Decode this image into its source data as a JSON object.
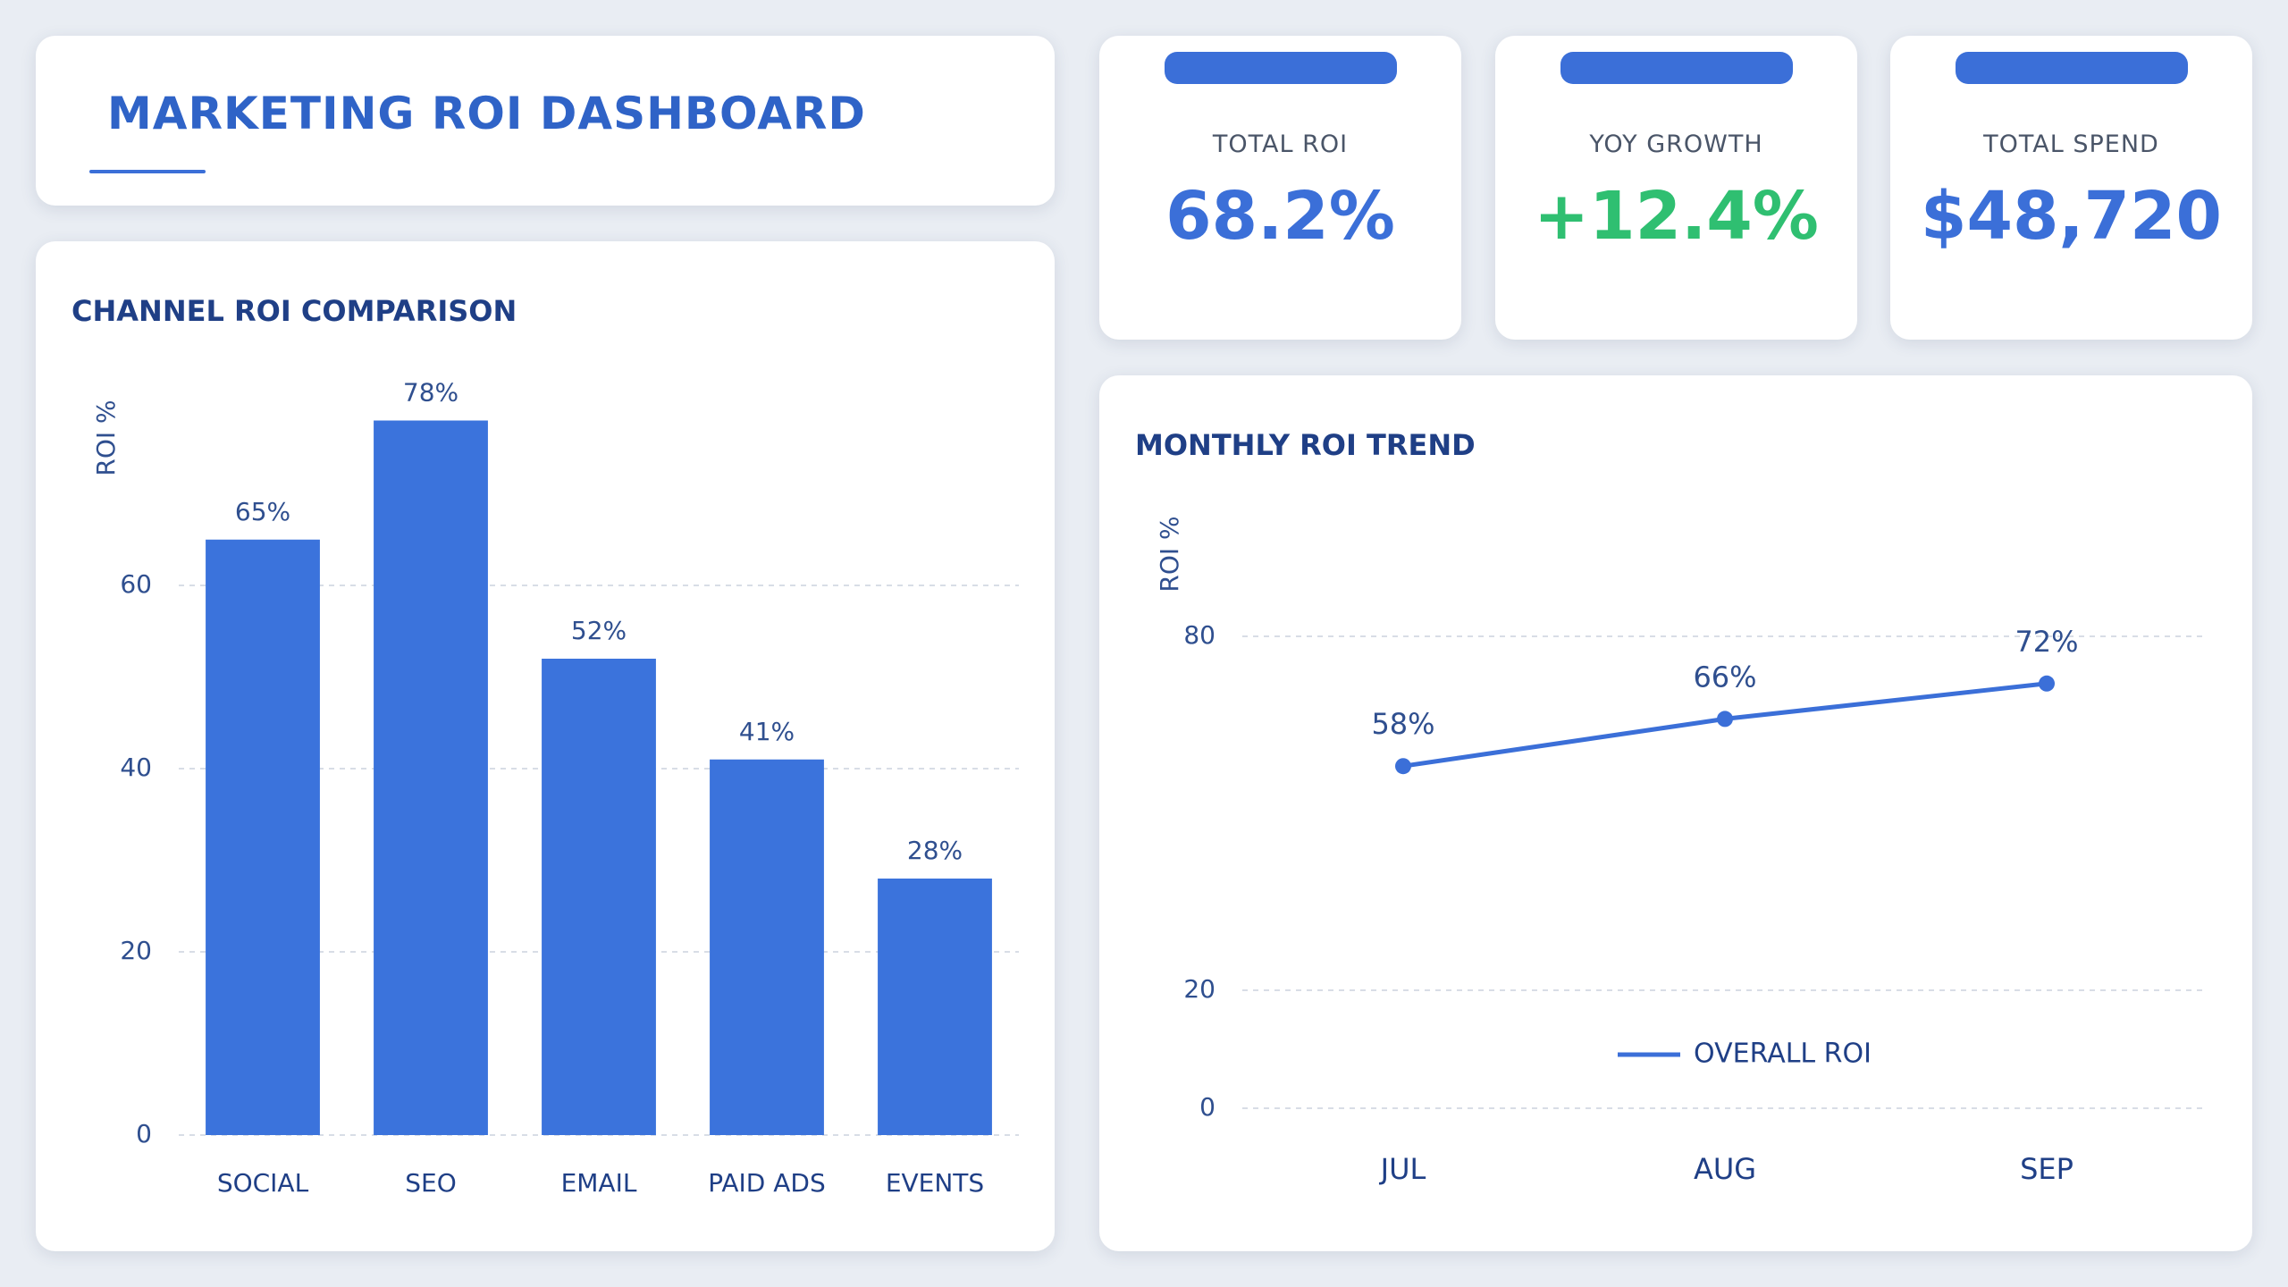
{
  "header": {
    "title": "MARKETING ROI DASHBOARD"
  },
  "kpis": [
    {
      "label": "TOTAL ROI",
      "value": "68.2%"
    },
    {
      "label": "YOY GROWTH",
      "value": "+12.4%"
    },
    {
      "label": "TOTAL SPEND",
      "value": "$48,720"
    }
  ],
  "chart_data": [
    {
      "type": "bar",
      "title": "CHANNEL ROI COMPARISON",
      "y_label": "ROI %",
      "categories": [
        "SOCIAL",
        "SEO",
        "EMAIL",
        "PAID ADS",
        "EVENTS"
      ],
      "values": [
        65,
        78,
        52,
        41,
        28
      ],
      "value_labels": [
        "65%",
        "78%",
        "52%",
        "41%",
        "28%"
      ],
      "color": "#3b73dc",
      "ylim": [
        0,
        80
      ],
      "yticks": [
        0,
        20,
        40,
        60
      ],
      "grid": true
    },
    {
      "type": "line",
      "title": "MONTHLY ROI TREND",
      "y_label": "ROI %",
      "categories": [
        "JUL",
        "AUG",
        "SEP"
      ],
      "series": [
        {
          "name": "OVERALL ROI",
          "color": "#3b6fd8",
          "values": [
            58,
            66,
            72
          ],
          "value_labels": [
            "58%",
            "66%",
            "72%"
          ]
        }
      ],
      "ylim": [
        0,
        100
      ],
      "yticks": [
        0,
        20,
        80
      ],
      "grid": true
    }
  ]
}
